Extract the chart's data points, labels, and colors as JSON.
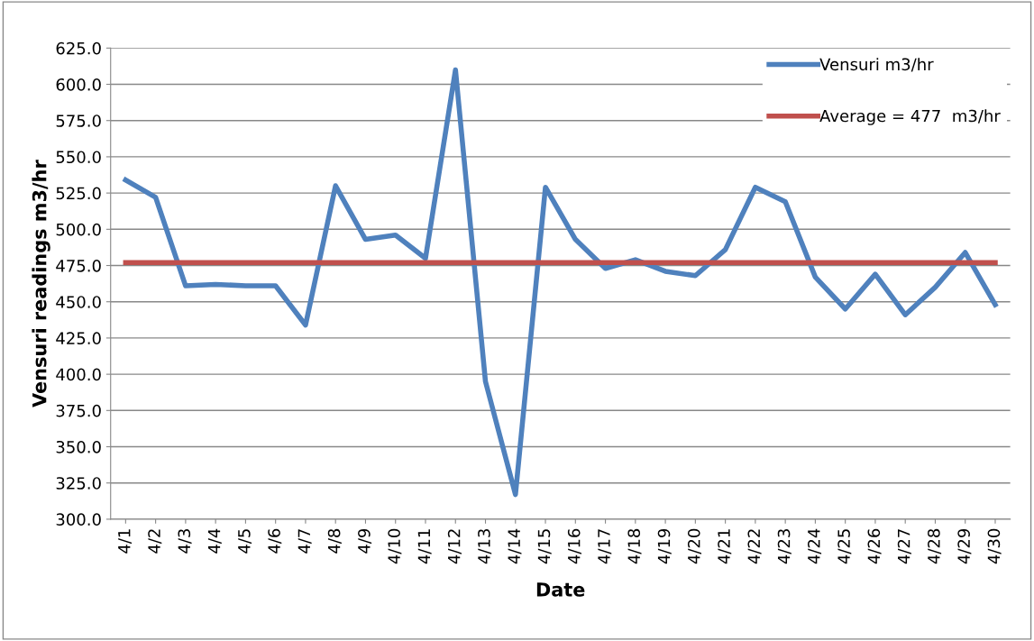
{
  "chart_data": {
    "type": "line",
    "xlabel": "Date",
    "ylabel": "Vensuri readings m3/hr",
    "categories": [
      "4/1",
      "4/2",
      "4/3",
      "4/4",
      "4/5",
      "4/6",
      "4/7",
      "4/8",
      "4/9",
      "4/10",
      "4/11",
      "4/12",
      "4/13",
      "4/14",
      "4/15",
      "4/16",
      "4/17",
      "4/18",
      "4/19",
      "4/20",
      "4/21",
      "4/22",
      "4/23",
      "4/24",
      "4/25",
      "4/26",
      "4/27",
      "4/28",
      "4/29",
      "4/30"
    ],
    "series": [
      {
        "name": "Vensuri m3/hr",
        "color": "#4f81bd",
        "values": [
          534,
          522,
          461,
          462,
          461,
          461,
          434,
          530,
          493,
          496,
          480,
          610,
          395,
          317,
          529,
          493,
          473,
          479,
          471,
          468,
          486,
          529,
          519,
          467,
          445,
          469,
          441,
          460,
          484,
          448
        ]
      },
      {
        "name": "Average = 477  m3/hr",
        "color": "#c0504d",
        "values": [
          477,
          477,
          477,
          477,
          477,
          477,
          477,
          477,
          477,
          477,
          477,
          477,
          477,
          477,
          477,
          477,
          477,
          477,
          477,
          477,
          477,
          477,
          477,
          477,
          477,
          477,
          477,
          477,
          477,
          477
        ]
      }
    ],
    "ylim": [
      300,
      625
    ],
    "yticks": [
      {
        "value": 300,
        "label": "300.0"
      },
      {
        "value": 325,
        "label": "325.0"
      },
      {
        "value": 350,
        "label": "350.0"
      },
      {
        "value": 375,
        "label": "375.0"
      },
      {
        "value": 400,
        "label": "400.0"
      },
      {
        "value": 425,
        "label": "425.0"
      },
      {
        "value": 450,
        "label": "450.0"
      },
      {
        "value": 475,
        "label": "475.0"
      },
      {
        "value": 500,
        "label": "500.0"
      },
      {
        "value": 525,
        "label": "525.0"
      },
      {
        "value": 550,
        "label": "550.0"
      },
      {
        "value": 575,
        "label": "575.0"
      },
      {
        "value": 600,
        "label": "600.0"
      },
      {
        "value": 625,
        "label": "625.0"
      }
    ],
    "grid": "y",
    "legend": "top right",
    "marker": "none",
    "line_style": "solid"
  }
}
